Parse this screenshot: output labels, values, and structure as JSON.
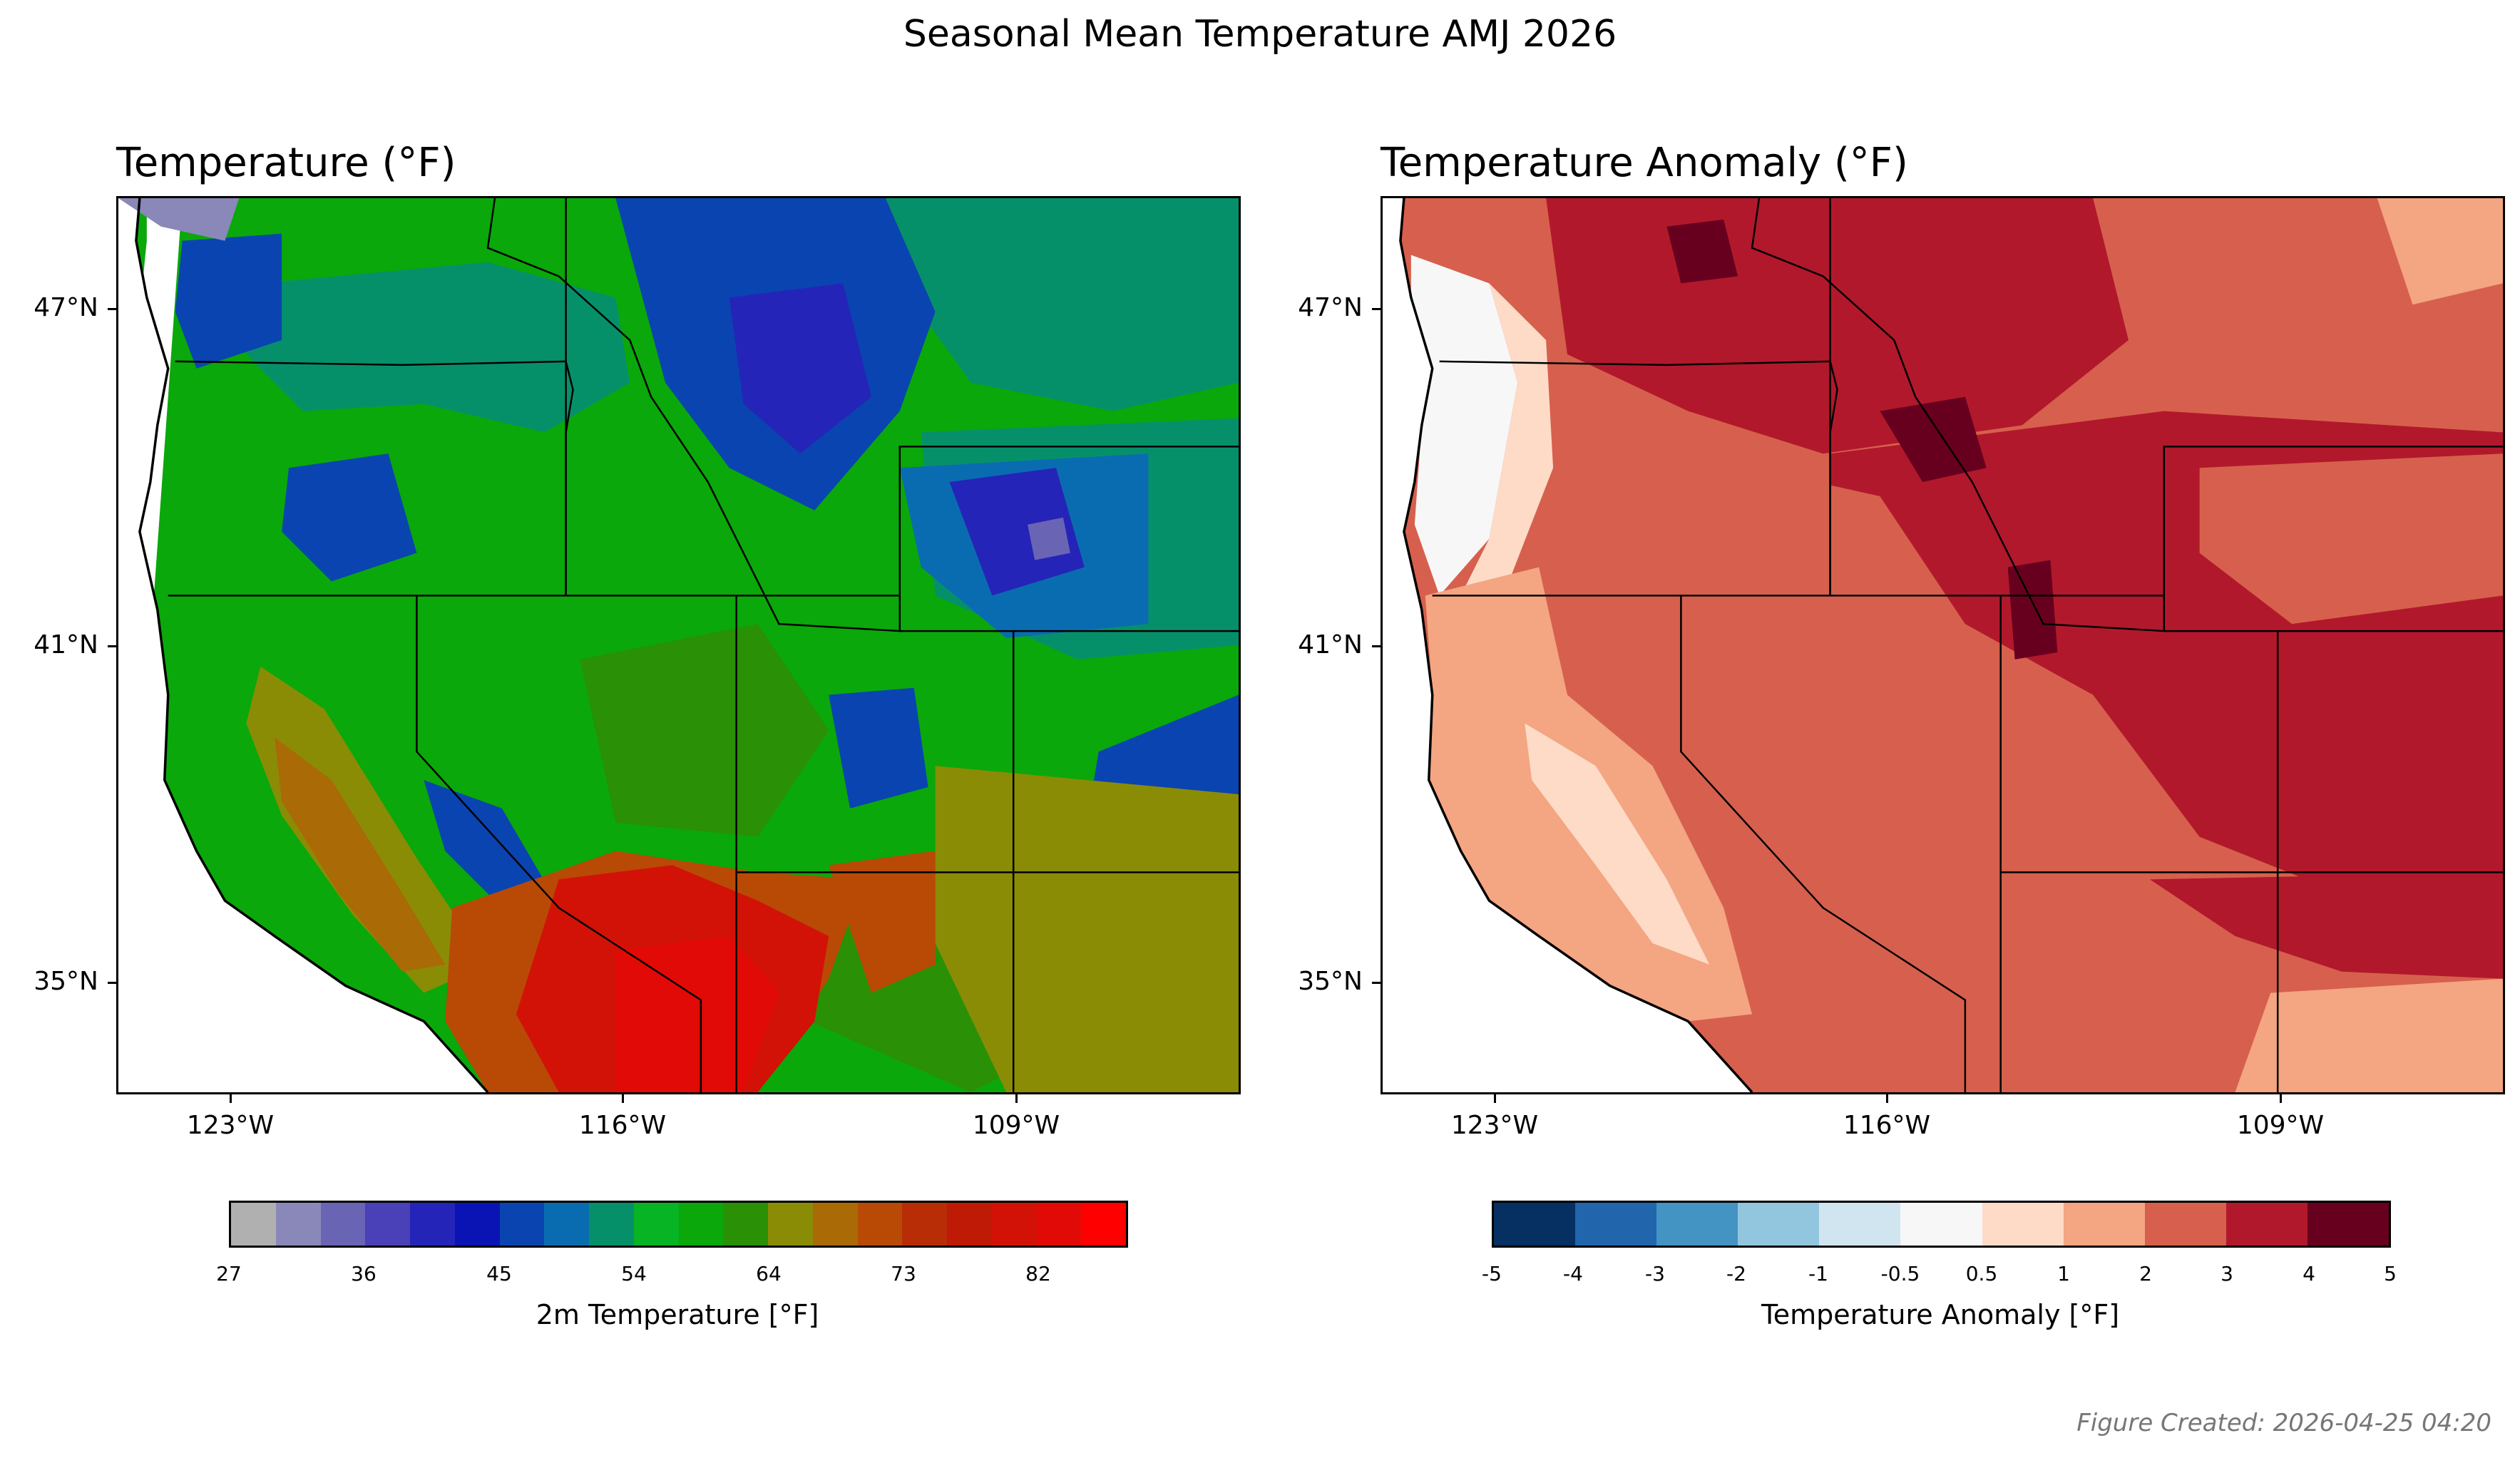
{
  "figure": {
    "suptitle": "Seasonal Mean Temperature AMJ 2026",
    "footer": "Figure Created: 2026-04-25 04:20"
  },
  "panels": [
    {
      "title": "Temperature (°F)",
      "colorbar": {
        "label": "2m Temperature [°F]",
        "tick_labels": [
          "27",
          "36",
          "45",
          "54",
          "64",
          "73",
          "82"
        ],
        "colors": [
          "#b0b0b0",
          "#8a88b8",
          "#6a64b4",
          "#4a40b8",
          "#2424b8",
          "#0a14b4",
          "#0a44b0",
          "#0a6cb0",
          "#06906a",
          "#06b424",
          "#0aa80a",
          "#2a9006",
          "#8a8c06",
          "#aa6a06",
          "#b84a06",
          "#b82c06",
          "#be1a06",
          "#d21206",
          "#e20a06",
          "#ff0000"
        ]
      }
    },
    {
      "title": "Temperature Anomaly (°F)",
      "colorbar": {
        "label": "Temperature Anomaly [°F]",
        "tick_labels": [
          "-5",
          "-4",
          "-3",
          "-2",
          "-1",
          "-0.5",
          "0.5",
          "1",
          "2",
          "3",
          "4",
          "5"
        ],
        "colors": [
          "#053061",
          "#2166ac",
          "#4393c3",
          "#92c5de",
          "#d1e5f0",
          "#f7f7f7",
          "#fddbc7",
          "#f4a582",
          "#d6604d",
          "#b2182b",
          "#67001f"
        ]
      }
    }
  ],
  "map": {
    "lat_ticks": [
      "47°N",
      "41°N",
      "35°N"
    ],
    "lon_ticks": [
      "123°W",
      "116°W",
      "109°W"
    ],
    "extent": {
      "lon_min": -125,
      "lon_max": -105,
      "lat_min": 33,
      "lat_max": 49
    }
  },
  "colors": {
    "temp_base": "#0aa80a",
    "anom_base": "#d6604d",
    "ocean": "#ffffff",
    "border": "#000000"
  }
}
